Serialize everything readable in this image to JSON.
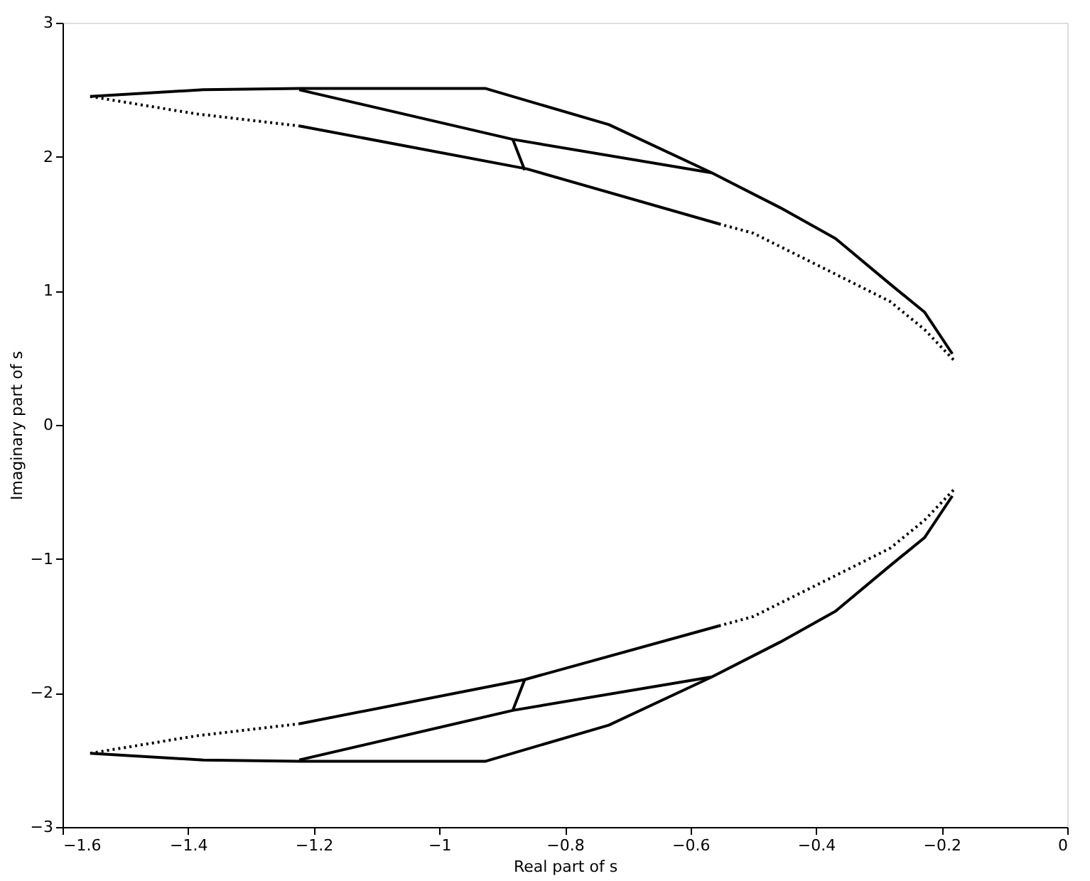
{
  "chart_data": {
    "type": "line",
    "xlabel": "Real part of s",
    "ylabel": "Imaginary part of s",
    "xlim": [
      -1.6,
      0
    ],
    "ylim": [
      -3,
      3
    ],
    "xticks": [
      -1.6,
      -1.4,
      -1.2,
      -1,
      -0.8,
      -0.6,
      -0.4,
      -0.2,
      0
    ],
    "yticks": [
      -3,
      -2,
      -1,
      0,
      1,
      2,
      3
    ],
    "grid": false,
    "marker": "none",
    "series": [
      {
        "color": "#000000",
        "line_style": "dotted",
        "x": [
          -1.556,
          -1.387,
          -1.223
        ],
        "values": [
          2.45,
          2.32,
          2.23
        ]
      },
      {
        "color": "#000000",
        "line_style": "solid",
        "x": [
          -1.223,
          -0.861,
          -0.555
        ],
        "values": [
          2.23,
          1.91,
          1.5
        ]
      },
      {
        "color": "#000000",
        "line_style": "dotted",
        "x": [
          -0.555,
          -0.5,
          -0.38,
          -0.282,
          -0.227,
          -0.178
        ],
        "values": [
          1.5,
          1.43,
          1.15,
          0.92,
          0.71,
          0.47
        ]
      },
      {
        "color": "#000000",
        "line_style": "solid",
        "x": [
          -1.556,
          -1.376,
          -1.223,
          -0.927,
          -0.73,
          -0.566,
          -0.457,
          -0.369,
          -0.282,
          -0.227,
          -0.183
        ],
        "values": [
          2.45,
          2.5,
          2.51,
          2.51,
          2.24,
          1.88,
          1.62,
          1.39,
          1.05,
          0.84,
          0.53
        ]
      },
      {
        "color": "#000000",
        "line_style": "solid",
        "x": [
          -1.223,
          -0.883,
          -0.566
        ],
        "values": [
          2.5,
          2.13,
          1.88
        ]
      },
      {
        "color": "#000000",
        "line_style": "solid",
        "x": [
          -0.883,
          -0.864
        ],
        "values": [
          2.13,
          1.9
        ]
      },
      {
        "color": "#000000",
        "line_style": "dotted",
        "x": [
          -1.556,
          -1.387,
          -1.223
        ],
        "values": [
          -2.45,
          -2.32,
          -2.23
        ]
      },
      {
        "color": "#000000",
        "line_style": "solid",
        "x": [
          -1.223,
          -0.864,
          -0.555
        ],
        "values": [
          -2.23,
          -1.9,
          -1.5
        ]
      },
      {
        "color": "#000000",
        "line_style": "dotted",
        "x": [
          -0.555,
          -0.5,
          -0.38,
          -0.282,
          -0.227,
          -0.178
        ],
        "values": [
          -1.5,
          -1.43,
          -1.15,
          -0.92,
          -0.71,
          -0.47
        ]
      },
      {
        "color": "#000000",
        "line_style": "solid",
        "x": [
          -1.556,
          -1.376,
          -1.223,
          -0.927,
          -0.73,
          -0.566,
          -0.457,
          -0.369,
          -0.282,
          -0.227,
          -0.183
        ],
        "values": [
          -2.45,
          -2.5,
          -2.51,
          -2.51,
          -2.24,
          -1.88,
          -1.62,
          -1.39,
          -1.05,
          -0.84,
          -0.53
        ]
      },
      {
        "color": "#000000",
        "line_style": "solid",
        "x": [
          -1.223,
          -0.883,
          -0.566
        ],
        "values": [
          -2.5,
          -2.13,
          -1.88
        ]
      },
      {
        "color": "#000000",
        "line_style": "solid",
        "x": [
          -0.883,
          -0.864
        ],
        "values": [
          -2.13,
          -1.9
        ]
      }
    ]
  }
}
